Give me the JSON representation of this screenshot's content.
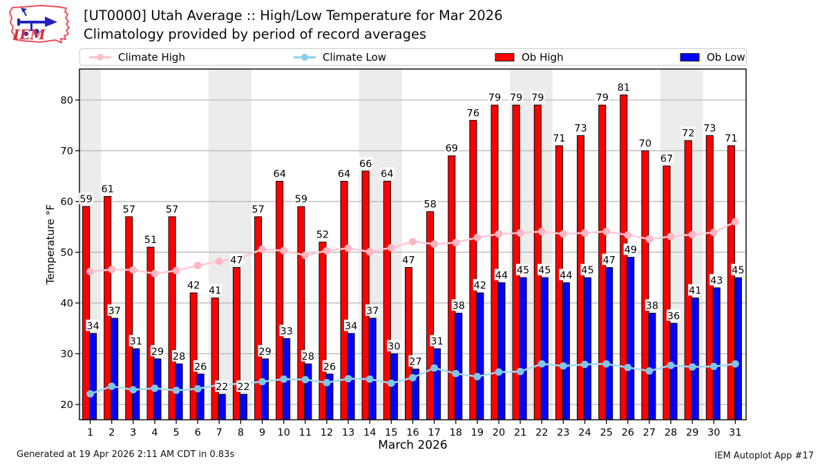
{
  "header": {
    "logo_text": "IEM",
    "title_line1": "[UT0000] Utah Average :: High/Low Temperature for Mar 2026",
    "title_line2": "Climatology provided by period of record averages"
  },
  "legend": {
    "items": [
      {
        "label": "Climate High",
        "swatch": "line",
        "color": "#ffc0cb"
      },
      {
        "label": "Climate Low",
        "swatch": "line",
        "color": "#87ceeb"
      },
      {
        "label": "Ob High",
        "swatch": "patch",
        "color": "#ff0000"
      },
      {
        "label": "Ob Low",
        "swatch": "patch",
        "color": "#0000ff"
      }
    ]
  },
  "chart_data": {
    "type": "bar+line",
    "title": "[UT0000] Utah Average :: High/Low Temperature for Mar 2026",
    "subtitle": "Climatology provided by period of record averages",
    "xlabel": "March 2026",
    "ylabel": "Temperature °F",
    "x": [
      1,
      2,
      3,
      4,
      5,
      6,
      7,
      8,
      9,
      10,
      11,
      12,
      13,
      14,
      15,
      16,
      17,
      18,
      19,
      20,
      21,
      22,
      23,
      24,
      25,
      26,
      27,
      28,
      29,
      30,
      31
    ],
    "yticks": [
      20,
      30,
      40,
      50,
      60,
      70,
      80
    ],
    "ylim": [
      17,
      86.1
    ],
    "grid": "horizontal",
    "gridline_color": "#b4b4b4",
    "weekend_band_color": "#ececec",
    "weekend_shading_days": [
      1,
      7,
      8,
      14,
      15,
      21,
      22,
      28,
      29
    ],
    "legend_position": "top",
    "bar_value_labels": true,
    "series": [
      {
        "name": "Ob High",
        "type": "bar",
        "color": "#ff0000",
        "edge_color": "#000000",
        "values": [
          59,
          61,
          57,
          51,
          57,
          42,
          41,
          47,
          57,
          64,
          59,
          52,
          64,
          66,
          64,
          47,
          58,
          69,
          76,
          79,
          79,
          79,
          71,
          73,
          79,
          81,
          70,
          67,
          72,
          73,
          71
        ]
      },
      {
        "name": "Ob Low",
        "type": "bar",
        "color": "#0000ff",
        "edge_color": "#000000",
        "values": [
          34,
          37,
          31,
          29,
          28,
          26,
          22,
          22,
          29,
          33,
          28,
          26,
          34,
          37,
          30,
          27,
          31,
          38,
          42,
          44,
          45,
          45,
          44,
          45,
          47,
          49,
          38,
          36,
          41,
          43,
          45
        ]
      },
      {
        "name": "Climate High",
        "type": "line",
        "color": "#ffc9d4",
        "marker_color": "#ffb6c4",
        "values": [
          46.2,
          46.6,
          46.5,
          45.8,
          46.4,
          47.4,
          48.2,
          48.9,
          50.6,
          50.3,
          49.4,
          50.3,
          50.8,
          50.1,
          50.9,
          52.1,
          51.6,
          51.9,
          52.9,
          53.6,
          53.8,
          54.1,
          53.6,
          53.8,
          54.1,
          53.4,
          52.6,
          53.1,
          53.5,
          53.9,
          56.0
        ]
      },
      {
        "name": "Climate Low",
        "type": "line",
        "color": "#a3d9f0",
        "marker_color": "#7cc6e8",
        "values": [
          22.1,
          23.6,
          22.9,
          23.2,
          22.8,
          23.1,
          23.9,
          24.1,
          24.5,
          25.0,
          24.9,
          24.3,
          25.1,
          25.0,
          24.2,
          25.3,
          27.2,
          26.1,
          25.5,
          26.4,
          26.5,
          28.0,
          27.6,
          27.9,
          28.0,
          27.3,
          26.6,
          27.7,
          27.4,
          27.5,
          28.0
        ]
      }
    ]
  },
  "footer": {
    "generated": "Generated at 19 Apr 2026 2:11 AM CDT in 0.83s",
    "app": "IEM Autoplot App #17"
  }
}
